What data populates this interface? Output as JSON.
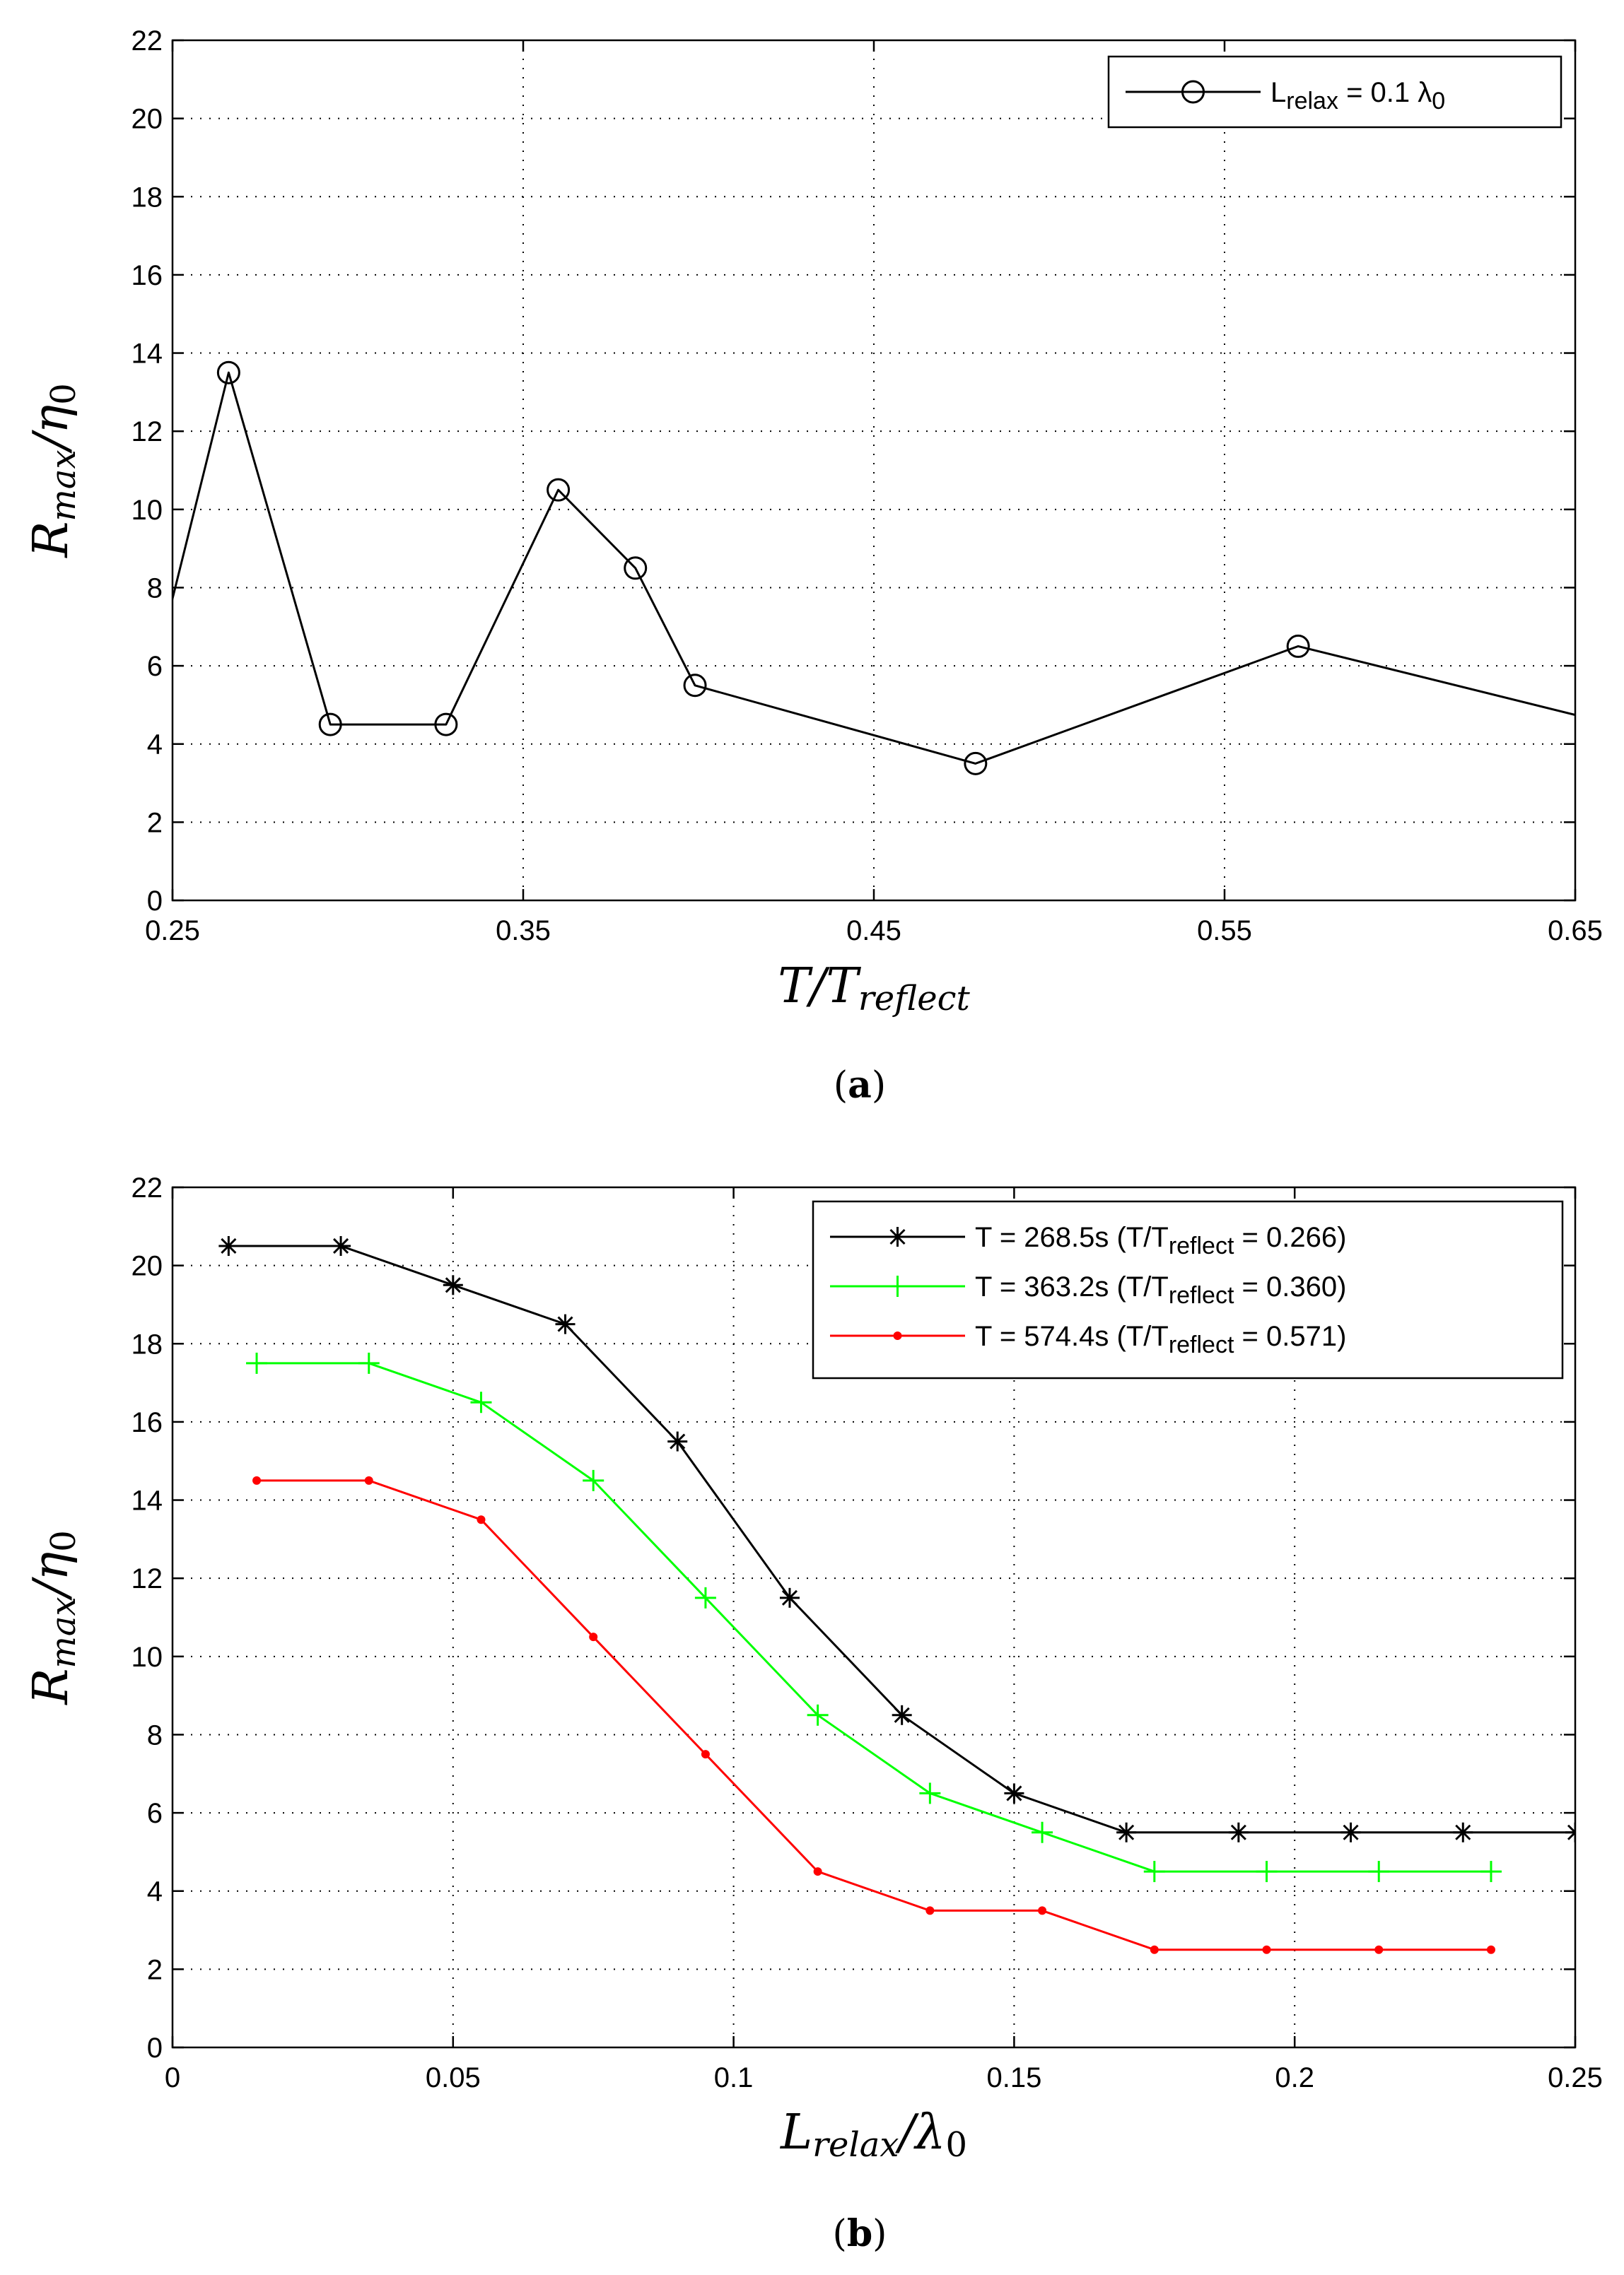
{
  "chart_data": [
    {
      "id": "a",
      "type": "line",
      "caption": {
        "open": "(",
        "letter": "a",
        "close": ")"
      },
      "xlabel": {
        "main": "T/T",
        "sub": "reflect"
      },
      "ylabel": {
        "main": "R",
        "sub": "max",
        "mid": "/η",
        "sub2": "0"
      },
      "xlim": [
        0.25,
        0.65
      ],
      "ylim": [
        0,
        22
      ],
      "xticks": [
        0.25,
        0.35,
        0.45,
        0.55,
        0.65
      ],
      "xtick_labels": [
        "0.25",
        "0.35",
        "0.45",
        "0.55",
        "0.65"
      ],
      "yticks": [
        0,
        2,
        4,
        6,
        8,
        10,
        12,
        14,
        16,
        18,
        20,
        22
      ],
      "ytick_labels": [
        "0",
        "2",
        "4",
        "6",
        "8",
        "10",
        "12",
        "14",
        "16",
        "18",
        "20",
        "22"
      ],
      "grid": true,
      "legend_position": "top-right",
      "series": [
        {
          "name": "L_relax = 0.1 λ0",
          "legend": {
            "main": "L",
            "sub": "relax",
            "rest": " = 0.1 λ",
            "sub2": "0"
          },
          "color": "#000000",
          "marker": "circle",
          "x": [
            0.248,
            0.266,
            0.295,
            0.328,
            0.36,
            0.382,
            0.399,
            0.479,
            0.571,
            0.652
          ],
          "y": [
            7.0,
            13.5,
            4.5,
            4.5,
            10.5,
            8.5,
            5.5,
            3.5,
            6.5,
            4.7
          ],
          "marker_mask": [
            false,
            true,
            true,
            true,
            true,
            true,
            true,
            true,
            true,
            false
          ]
        }
      ]
    },
    {
      "id": "b",
      "type": "line",
      "caption": {
        "open": "(",
        "letter": "b",
        "close": ")"
      },
      "xlabel": {
        "main": "L",
        "sub": "relax",
        "mid": "/λ",
        "sub2": "0"
      },
      "ylabel": {
        "main": "R",
        "sub": "max",
        "mid": "/η",
        "sub2": "0"
      },
      "xlim": [
        0,
        0.25
      ],
      "ylim": [
        0,
        22
      ],
      "xticks": [
        0,
        0.05,
        0.1,
        0.15,
        0.2,
        0.25
      ],
      "xtick_labels": [
        "0",
        "0.05",
        "0.1",
        "0.15",
        "0.2",
        "0.25"
      ],
      "yticks": [
        0,
        2,
        4,
        6,
        8,
        10,
        12,
        14,
        16,
        18,
        20,
        22
      ],
      "ytick_labels": [
        "0",
        "2",
        "4",
        "6",
        "8",
        "10",
        "12",
        "14",
        "16",
        "18",
        "20",
        "22"
      ],
      "grid": true,
      "legend_position": "top-right",
      "series": [
        {
          "name": "T = 268.5s (T/T_reflect = 0.266)",
          "legend": {
            "main": "T = 268.5s (T/T",
            "sub": "reflect",
            "rest": " = 0.266)"
          },
          "color": "#000000",
          "marker": "star",
          "x": [
            0.01,
            0.03,
            0.05,
            0.07,
            0.09,
            0.11,
            0.13,
            0.15,
            0.17,
            0.19,
            0.21,
            0.23,
            0.25
          ],
          "y": [
            20.5,
            20.5,
            19.5,
            18.5,
            15.5,
            11.5,
            8.5,
            6.5,
            5.5,
            5.5,
            5.5,
            5.5,
            5.5
          ]
        },
        {
          "name": "T = 363.2s (T/T_reflect = 0.360)",
          "legend": {
            "main": "T = 363.2s (T/T",
            "sub": "reflect",
            "rest": " = 0.360)"
          },
          "color": "#00ff00",
          "marker": "plus",
          "x": [
            0.015,
            0.035,
            0.055,
            0.075,
            0.095,
            0.115,
            0.135,
            0.155,
            0.175,
            0.195,
            0.215,
            0.235
          ],
          "y": [
            17.5,
            17.5,
            16.5,
            14.5,
            11.5,
            8.5,
            6.5,
            5.5,
            4.5,
            4.5,
            4.5,
            4.5
          ]
        },
        {
          "name": "T = 574.4s (T/T_reflect = 0.571)",
          "legend": {
            "main": "T = 574.4s (T/T",
            "sub": "reflect",
            "rest": " = 0.571)"
          },
          "color": "#ff0000",
          "marker": "dot",
          "x": [
            0.015,
            0.035,
            0.055,
            0.075,
            0.095,
            0.115,
            0.135,
            0.155,
            0.175,
            0.195,
            0.215,
            0.235
          ],
          "y": [
            14.5,
            14.5,
            13.5,
            10.5,
            7.5,
            4.5,
            3.5,
            3.5,
            2.5,
            2.5,
            2.5,
            2.5
          ]
        }
      ]
    }
  ]
}
